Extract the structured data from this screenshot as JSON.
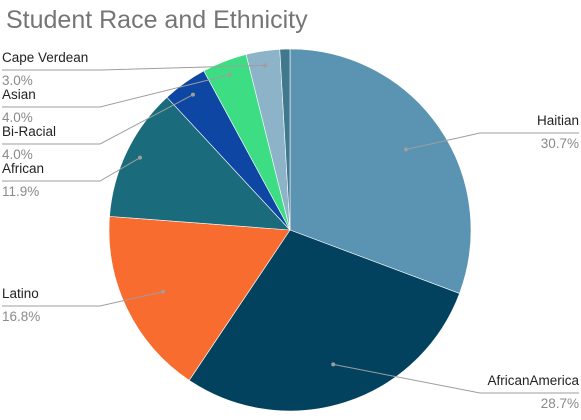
{
  "chart_data": {
    "type": "pie",
    "title": "Student Race and Ethnicity",
    "slices": [
      {
        "label": "Haitian",
        "value": 30.7,
        "value_label": "30.7%",
        "color": "#5b93b2"
      },
      {
        "label": "AfricanAmerica",
        "value": 28.7,
        "value_label": "28.7%",
        "color": "#03425e"
      },
      {
        "label": "Latino",
        "value": 16.8,
        "value_label": "16.8%",
        "color": "#f96c30"
      },
      {
        "label": "African",
        "value": 11.9,
        "value_label": "11.9%",
        "color": "#1a6b7b"
      },
      {
        "label": "Bi-Racial",
        "value": 4.0,
        "value_label": "4.0%",
        "color": "#0d46a3"
      },
      {
        "label": "Asian",
        "value": 4.0,
        "value_label": "4.0%",
        "color": "#3ddd84"
      },
      {
        "label": "Cape Verdean",
        "value": 3.0,
        "value_label": "3.0%",
        "color": "#8cb3c8"
      },
      {
        "label": "",
        "value": 0.9,
        "value_label": "",
        "color": "#40788d"
      }
    ],
    "legend": "none",
    "label_style": "outside-with-leader-lines"
  }
}
